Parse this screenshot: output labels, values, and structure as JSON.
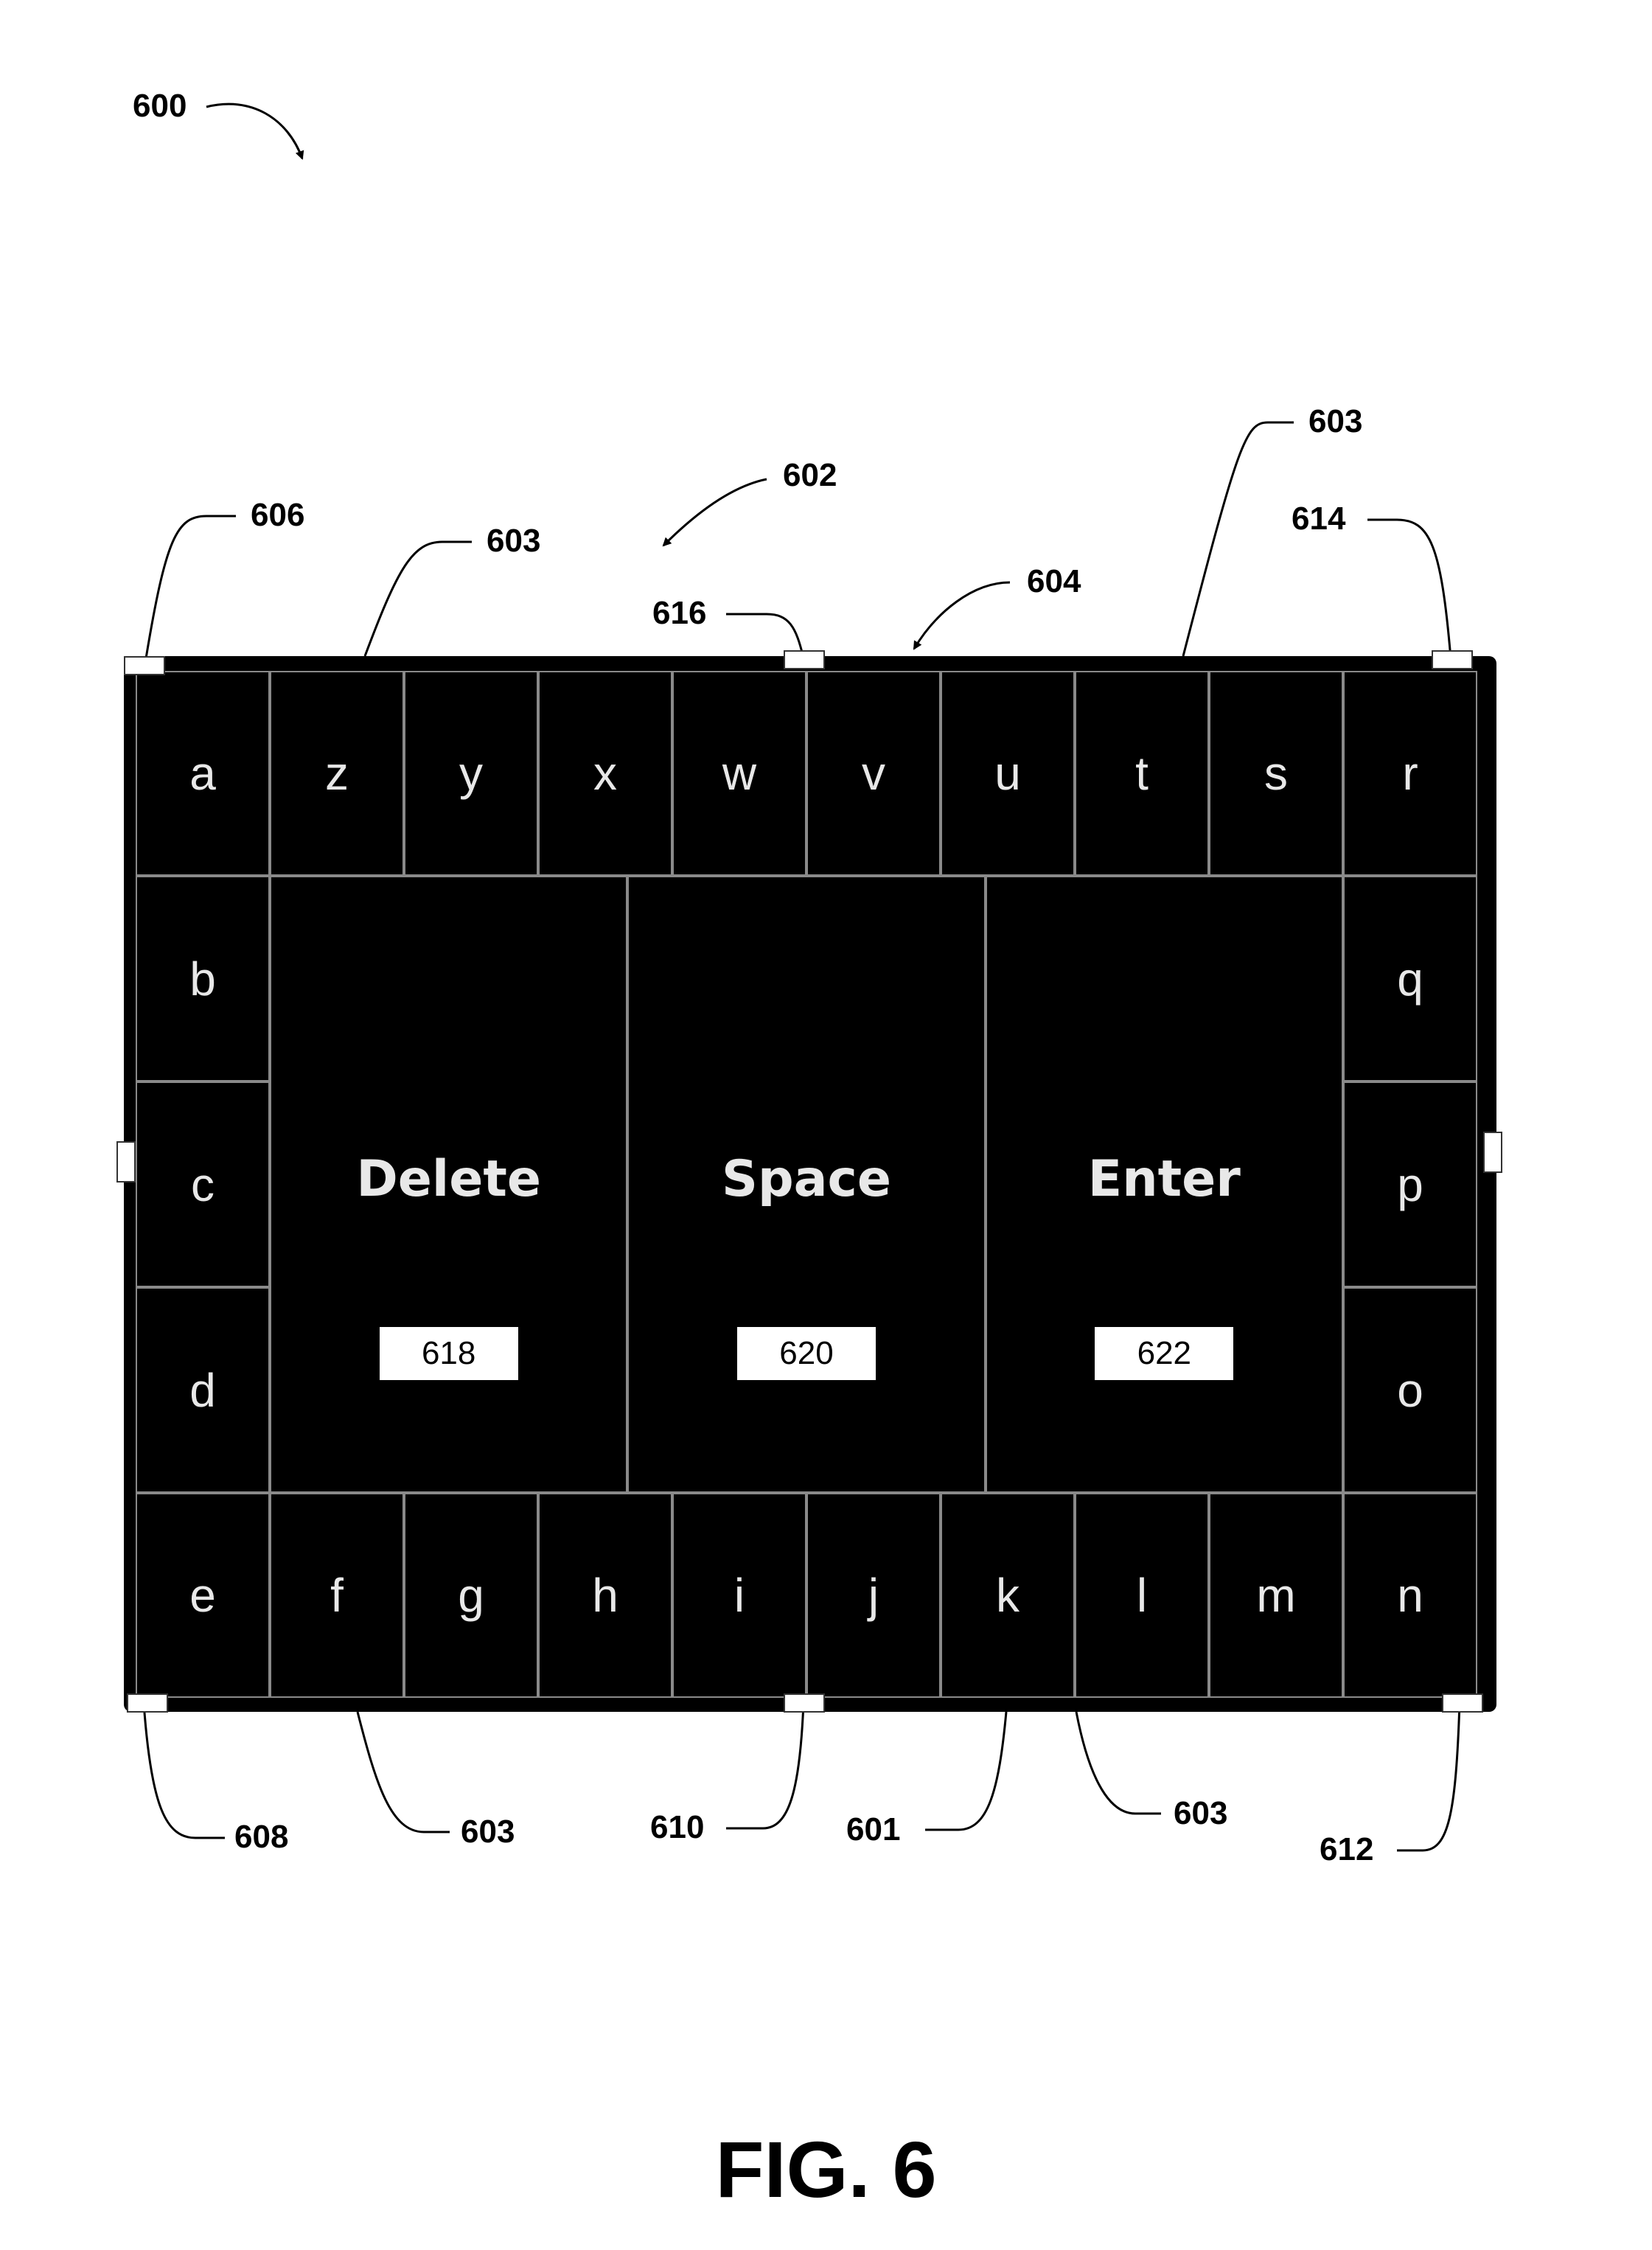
{
  "figure": {
    "caption": "FIG. 6",
    "reference_numerals": {
      "figure": "600",
      "keyboard": "602",
      "border": "603",
      "pointer": "604",
      "corner_top_left": "606",
      "corner_bottom_left": "608",
      "edge_bottom_middle": "610",
      "corner_bottom_right": "612",
      "corner_top_right": "614",
      "edge_top_middle": "616",
      "keyboard_body": "601"
    }
  },
  "keyboard": {
    "top_row": [
      "a",
      "z",
      "y",
      "x",
      "w",
      "v",
      "u",
      "t",
      "s",
      "r"
    ],
    "left_column": [
      "b",
      "c",
      "d"
    ],
    "right_column": [
      "q",
      "p",
      "o"
    ],
    "bottom_row": [
      "e",
      "f",
      "g",
      "h",
      "i",
      "j",
      "k",
      "l",
      "m",
      "n"
    ],
    "function_keys": [
      {
        "label": "Delete",
        "tag": "618"
      },
      {
        "label": "Space",
        "tag": "620"
      },
      {
        "label": "Enter",
        "tag": "622"
      }
    ]
  }
}
